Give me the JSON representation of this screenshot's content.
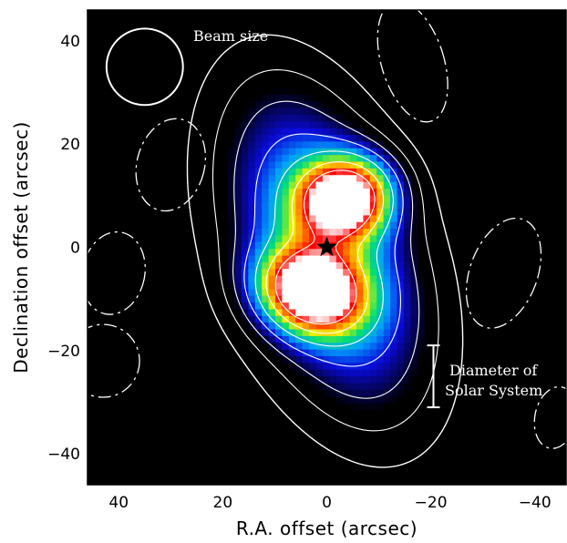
{
  "chart_data": {
    "type": "heatmap",
    "xlabel": "R.A. offset (arcsec)",
    "ylabel": "Declination offset (arcsec)",
    "xlim": [
      46,
      -46
    ],
    "ylim": [
      -46,
      46
    ],
    "x_ticks": [
      40,
      20,
      0,
      -20,
      -40
    ],
    "y_ticks": [
      40,
      20,
      0,
      -20,
      -40
    ],
    "x_tick_labels": [
      "40",
      "20",
      "0",
      "−20",
      "−40"
    ],
    "y_tick_labels": [
      "40",
      "20",
      "0",
      "−20",
      "−40"
    ],
    "colormap": [
      "#000000",
      "#0a0ad8",
      "#00a0ff",
      "#00e070",
      "#f0f000",
      "#ff9000",
      "#ff0000",
      "#ffffff"
    ],
    "peaks": [
      {
        "x": 3.0,
        "y": -8.5,
        "level": 1.0
      },
      {
        "x": -3.5,
        "y": 9.5,
        "level": 0.96
      }
    ],
    "star_position": {
      "x": 0,
      "y": 0
    },
    "beam": {
      "x": 35,
      "y": 35,
      "diameter": 14
    },
    "scale_bar": {
      "x": -20.5,
      "y_top": -19,
      "y_bottom": -31
    },
    "annotations": {
      "beam_label": "Beam size",
      "scale_label_line1": "Diameter of",
      "scale_label_line2": "Solar System"
    }
  }
}
